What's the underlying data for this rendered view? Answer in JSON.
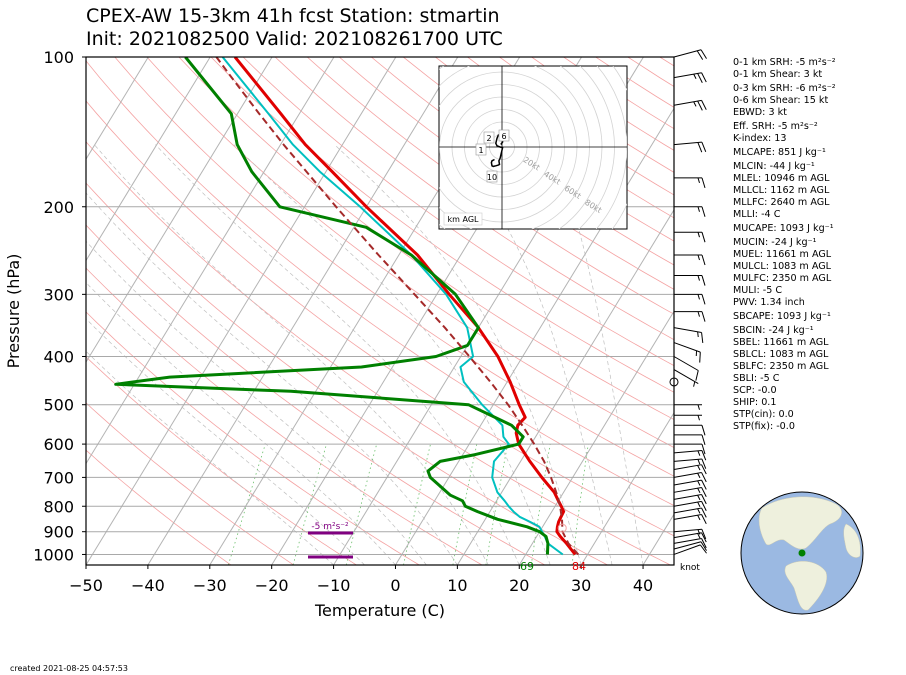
{
  "header": {
    "title_line1": "CPEX-AW 15-3km  41h fcst  Station: stmartin",
    "title_line2": "Init: 2021082500  Valid: 202108261700 UTC"
  },
  "footer": {
    "created": "created 2021-08-25 04:57:53"
  },
  "chart_data": {
    "type": "skew-t log-p sounding",
    "xlabel": "Temperature (C)",
    "ylabel": "Pressure (hPa)",
    "xlim": [
      -50,
      45
    ],
    "ylim": [
      1050,
      100
    ],
    "log_y": true,
    "x_ticks": [
      -50,
      -40,
      -30,
      -20,
      -10,
      0,
      10,
      20,
      30,
      40
    ],
    "y_ticks": [
      100,
      200,
      300,
      400,
      500,
      600,
      700,
      800,
      900,
      1000
    ],
    "wind_units_label": "knot",
    "surface_temperature_label": "84",
    "surface_dewpoint_label": "69",
    "srh_layer_label": "-5 m²s⁻²",
    "colors": {
      "temperature": "#e00000",
      "dewpoint": "#008000",
      "wetbulb": "#00c0c0",
      "parcel": "#a52a2a",
      "srh_bar": "#800080"
    },
    "series": [
      {
        "pressure": [
          1000,
          950,
          920,
          900,
          880,
          860,
          840,
          820,
          800,
          780,
          750,
          700,
          650,
          600,
          570,
          550,
          530,
          500,
          450,
          400,
          350,
          300,
          250,
          200,
          170,
          150,
          130,
          100
        ],
        "values": [
          28,
          25.5,
          23.8,
          22.8,
          22.4,
          22.1,
          22,
          21.9,
          21,
          20,
          18.5,
          15,
          11.5,
          8,
          6.5,
          6,
          6.4,
          4.2,
          0.5,
          -4,
          -10,
          -18,
          -27,
          -40,
          -49,
          -56,
          -63,
          -76
        ]
      },
      {
        "pressure": [
          1000,
          950,
          920,
          900,
          880,
          850,
          820,
          800,
          780,
          760,
          700,
          680,
          650,
          630,
          600,
          580,
          550,
          500,
          470,
          455,
          440,
          420,
          400,
          380,
          350,
          300,
          250,
          220,
          200,
          170,
          150,
          130,
          100
        ],
        "values": [
          23.5,
          22.5,
          21.5,
          20,
          17.5,
          12,
          8,
          5.5,
          4.5,
          2,
          -3,
          -4,
          -3,
          2,
          8,
          8,
          5,
          -4,
          -34,
          -63,
          -55,
          -25,
          -14,
          -10,
          -10,
          -17,
          -28,
          -38,
          -54,
          -62,
          -67,
          -71,
          -84
        ]
      },
      {
        "pressure": [
          1000,
          950,
          920,
          900,
          880,
          860,
          840,
          820,
          800,
          780,
          750,
          700,
          650,
          600,
          580,
          550,
          500,
          450,
          420,
          400,
          350,
          300,
          250,
          200,
          170,
          150,
          130,
          100
        ],
        "values": [
          26,
          22.5,
          21.3,
          20.4,
          19.5,
          17.5,
          15.3,
          13.8,
          12.5,
          11.3,
          9.3,
          7,
          5.7,
          6.4,
          4.8,
          3.5,
          -1.8,
          -7,
          -9,
          -8,
          -11.8,
          -18.5,
          -28,
          -41,
          -51,
          -58,
          -65,
          -78
        ]
      },
      {
        "pressure": [
          1000,
          950,
          900,
          850,
          800,
          750,
          700,
          650,
          600,
          550,
          500,
          450,
          400,
          350,
          300,
          250,
          200,
          150,
          130,
          110,
          100
        ],
        "values": [
          28.5,
          25.8,
          23.7,
          22.4,
          20.8,
          18.8,
          16.5,
          13.8,
          10.5,
          6.7,
          2.4,
          -2.7,
          -8.6,
          -15.4,
          -23.6,
          -33.3,
          -44.9,
          -59.5,
          -66.5,
          -74.5,
          -79
        ]
      }
    ],
    "hodograph": {
      "ring_labels": [
        "20kt",
        "40kt",
        "60kt",
        "80kt"
      ],
      "height_labels": [
        "1",
        "2",
        "6",
        "10"
      ],
      "units_label": "km AGL",
      "u_kt": [
        -6,
        -8,
        -8.5,
        -8,
        -7,
        -5,
        -3,
        -2,
        -2.5,
        -1.5,
        0.5,
        -1.5,
        -4,
        -5,
        -4,
        -3,
        -1.5,
        0.5,
        0.5,
        0.5,
        -1
      ],
      "v_kt": [
        -10,
        -11,
        -12.5,
        -15,
        -15.5,
        -15,
        -14.5,
        -14,
        -11,
        -9,
        -0.5,
        0,
        1,
        3,
        7,
        9.5,
        10,
        9,
        7,
        4,
        2
      ]
    },
    "wind_barbs": {
      "pressure": [
        1000,
        975,
        950,
        925,
        900,
        850,
        825,
        800,
        775,
        750,
        725,
        700,
        675,
        650,
        625,
        600,
        575,
        550,
        525,
        500,
        450,
        425,
        400,
        375,
        350,
        325,
        300,
        275,
        250,
        225,
        200,
        175,
        150,
        125,
        110,
        100
      ],
      "speed_kt": [
        10,
        10,
        12,
        15,
        15,
        15,
        15,
        15,
        15,
        15,
        15,
        15,
        15,
        15,
        15,
        10,
        10,
        10,
        5,
        5,
        0,
        5,
        10,
        15,
        15,
        15,
        15,
        15,
        15,
        15,
        15,
        15,
        20,
        25,
        25,
        20
      ],
      "direction_deg": [
        70,
        75,
        80,
        80,
        85,
        80,
        80,
        80,
        80,
        80,
        80,
        80,
        80,
        85,
        85,
        90,
        90,
        90,
        90,
        90,
        0,
        120,
        120,
        110,
        100,
        90,
        90,
        90,
        90,
        90,
        90,
        90,
        85,
        80,
        80,
        75
      ]
    },
    "globe": {
      "marker_label": ""
    }
  },
  "stats": [
    "0-1 km SRH: -5 m²s⁻²",
    "0-1 km Shear: 3 kt",
    "0-3 km SRH: -6 m²s⁻²",
    "0-6 km Shear: 15 kt",
    "EBWD: 3 kt",
    "Eff. SRH: -5 m²s⁻²",
    "K-index: 13",
    "MLCAPE: 851 J kg⁻¹",
    "MLCIN: -44 J kg⁻¹",
    "MLEL: 10946 m AGL",
    "MLLCL: 1162 m AGL",
    "MLLFC: 2640 m AGL",
    "MLLI: -4 C",
    "MUCAPE: 1093 J kg⁻¹",
    "MUCIN: -24 J kg⁻¹",
    "MUEL: 11661 m AGL",
    "MULCL: 1083 m AGL",
    "MULFC: 2350 m AGL",
    "MULI: -5 C",
    "PWV: 1.34 inch",
    "SBCAPE: 1093 J kg⁻¹",
    "SBCIN: -24 J kg⁻¹",
    "SBEL: 11661 m AGL",
    "SBLCL: 1083 m AGL",
    "SBLFC: 2350 m AGL",
    "SBLI: -5 C",
    "SCP: -0.0",
    "SHIP: 0.1",
    "STP(cin): 0.0",
    "STP(fix): -0.0"
  ]
}
